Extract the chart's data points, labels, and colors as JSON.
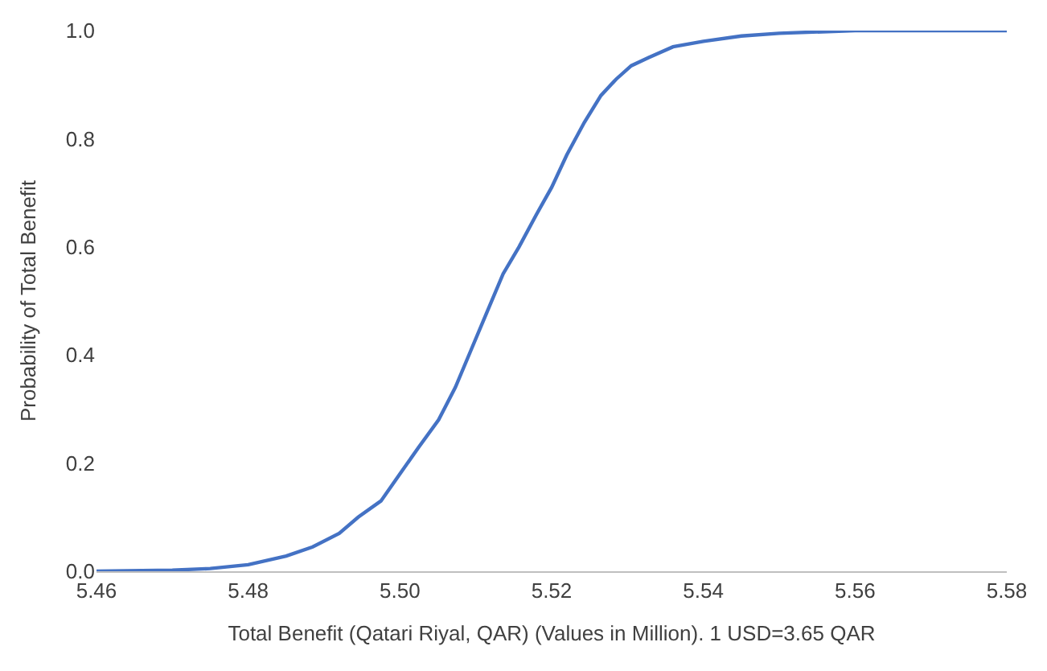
{
  "chart_data": {
    "type": "line",
    "xlabel": "Total Benefit (Qatari Riyal, QAR) (Values in Million). 1 USD=3.65 QAR",
    "ylabel": "Probability of Total Benefit",
    "x": [
      5.46,
      5.47,
      5.475,
      5.48,
      5.485,
      5.4885,
      5.492,
      5.4945,
      5.4975,
      5.5,
      5.5025,
      5.5051,
      5.5073,
      5.5094,
      5.5115,
      5.5136,
      5.5157,
      5.518,
      5.52,
      5.522,
      5.5243,
      5.5265,
      5.5285,
      5.5305,
      5.5328,
      5.536,
      5.54,
      5.545,
      5.55,
      5.56,
      5.58
    ],
    "series": [
      {
        "color": "#4472c4",
        "values": [
          0.0,
          0.002,
          0.005,
          0.012,
          0.028,
          0.045,
          0.07,
          0.1,
          0.13,
          0.18,
          0.23,
          0.28,
          0.34,
          0.41,
          0.48,
          0.55,
          0.6,
          0.66,
          0.71,
          0.77,
          0.83,
          0.88,
          0.91,
          0.935,
          0.95,
          0.97,
          0.98,
          0.99,
          0.995,
          1.0,
          1.0
        ]
      }
    ],
    "xlim": [
      5.46,
      5.58
    ],
    "xticks": [
      {
        "value": 5.46,
        "label": "5.46"
      },
      {
        "value": 5.48,
        "label": "5.48"
      },
      {
        "value": 5.5,
        "label": "5.50"
      },
      {
        "value": 5.52,
        "label": "5.52"
      },
      {
        "value": 5.54,
        "label": "5.54"
      },
      {
        "value": 5.56,
        "label": "5.56"
      },
      {
        "value": 5.58,
        "label": "5.58"
      }
    ],
    "ylim": [
      0,
      1.0
    ],
    "yticks": [
      {
        "value": 0,
        "label": "0.0"
      },
      {
        "value": 0.2,
        "label": "0.2"
      },
      {
        "value": 0.4,
        "label": "0.4"
      },
      {
        "value": 0.6,
        "label": "0.6"
      },
      {
        "value": 0.8,
        "label": "0.8"
      },
      {
        "value": 1.0,
        "label": "1.0"
      }
    ],
    "marker": "none",
    "line_style": "solid"
  }
}
